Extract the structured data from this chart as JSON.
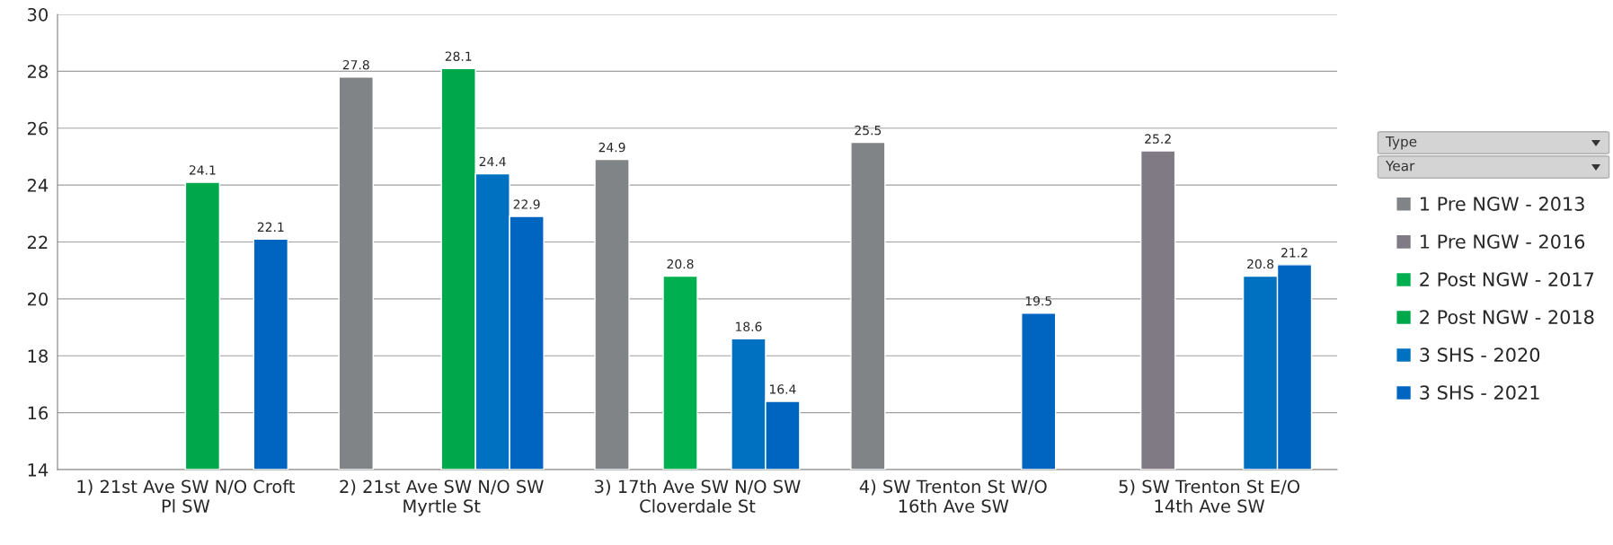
{
  "chart_data": {
    "type": "bar",
    "categories": [
      "1) 21st Ave SW N/O Croft\nPl SW",
      "2) 21st Ave SW N/O SW\nMyrtle St",
      "3) 17th Ave SW N/O SW\nCloverdale St",
      "4) SW Trenton St W/O\n16th Ave SW",
      "5) SW Trenton St E/O\n14th Ave SW"
    ],
    "series": [
      {
        "name": "1 Pre NGW - 2013",
        "color": "#808486",
        "values": [
          null,
          27.8,
          24.9,
          25.5,
          null
        ]
      },
      {
        "name": "1 Pre NGW - 2016",
        "color": "#7f7a84",
        "values": [
          null,
          null,
          null,
          null,
          25.2
        ]
      },
      {
        "name": "2 Post NGW - 2017",
        "color": "#00b050",
        "values": [
          null,
          null,
          20.8,
          null,
          null
        ]
      },
      {
        "name": "2 Post NGW - 2018",
        "color": "#00a84c",
        "values": [
          24.1,
          28.1,
          null,
          null,
          null
        ]
      },
      {
        "name": "3 SHS - 2020",
        "color": "#0070c0",
        "values": [
          null,
          24.4,
          18.6,
          null,
          20.8
        ]
      },
      {
        "name": "3 SHS - 2021",
        "color": "#0065c0",
        "values": [
          22.1,
          22.9,
          16.4,
          19.5,
          21.2
        ]
      }
    ],
    "ylim": [
      14,
      30
    ],
    "yticks": [
      14,
      16,
      18,
      20,
      22,
      24,
      26,
      28,
      30
    ],
    "grid": "y",
    "legend": "right",
    "data_labels": true,
    "annotations": [
      "Type",
      "Year"
    ]
  }
}
